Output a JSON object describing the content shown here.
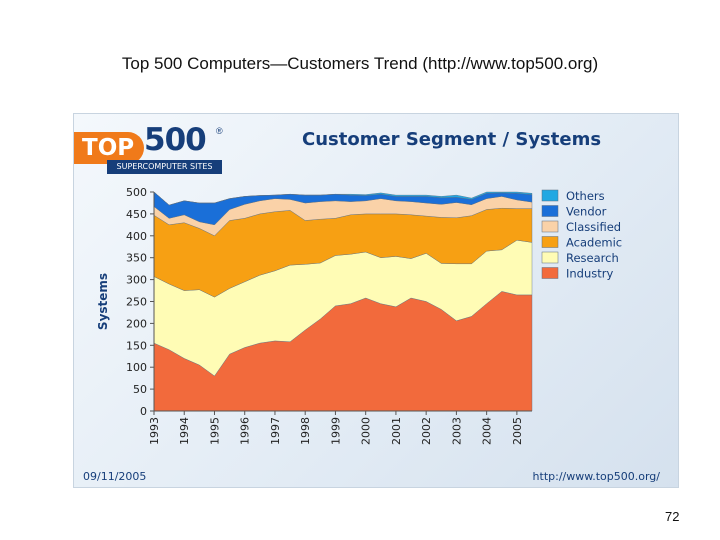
{
  "slide": {
    "title": "Top 500 Computers—Customers Trend (http://www.top500.org)",
    "page_number": "72"
  },
  "panel": {
    "logo_badge": "TOP",
    "logo_word": "500",
    "logo_reg": "®",
    "logo_tagline": "SUPERCOMPUTER SITES",
    "footer_date": "09/11/2005",
    "footer_url": "http://www.top500.org/"
  },
  "chart_data": {
    "type": "area",
    "stacked": true,
    "title": "Customer Segment / Systems",
    "xlabel": "",
    "ylabel": "Systems",
    "ylim": [
      0,
      500
    ],
    "yticks": [
      0,
      50,
      100,
      150,
      200,
      250,
      300,
      350,
      400,
      450,
      500
    ],
    "x_ticks": [
      "1993",
      "1994",
      "1995",
      "1996",
      "1997",
      "1998",
      "1999",
      "2000",
      "2001",
      "2002",
      "2003",
      "2004",
      "2005"
    ],
    "x": [
      1993.0,
      1993.5,
      1994.0,
      1994.5,
      1995.0,
      1995.5,
      1996.0,
      1996.5,
      1997.0,
      1997.5,
      1998.0,
      1998.5,
      1999.0,
      1999.5,
      2000.0,
      2000.5,
      2001.0,
      2001.5,
      2002.0,
      2002.5,
      2003.0,
      2003.5,
      2004.0,
      2004.5,
      2005.0,
      2005.5
    ],
    "grid": false,
    "legend_position": "right",
    "series": [
      {
        "name": "Industry",
        "color": "#f26a3c",
        "values": [
          155,
          140,
          120,
          105,
          80,
          130,
          145,
          155,
          160,
          158,
          185,
          210,
          240,
          245,
          258,
          245,
          238,
          258,
          250,
          232,
          206,
          216,
          245,
          273,
          265,
          265
        ]
      },
      {
        "name": "Research",
        "color": "#fffcb5",
        "values": [
          152,
          150,
          155,
          172,
          180,
          150,
          150,
          155,
          160,
          175,
          150,
          128,
          115,
          113,
          105,
          105,
          115,
          90,
          110,
          105,
          130,
          120,
          120,
          95,
          125,
          120
        ]
      },
      {
        "name": "Academic",
        "color": "#f7a013",
        "values": [
          140,
          135,
          155,
          140,
          140,
          155,
          145,
          140,
          135,
          125,
          100,
          100,
          85,
          90,
          87,
          100,
          97,
          100,
          85,
          105,
          105,
          110,
          95,
          95,
          72,
          77
        ]
      },
      {
        "name": "Classified",
        "color": "#fad2a8",
        "values": [
          20,
          15,
          18,
          15,
          25,
          25,
          32,
          30,
          30,
          25,
          40,
          40,
          40,
          30,
          30,
          35,
          30,
          30,
          30,
          30,
          35,
          25,
          25,
          27,
          20,
          15
        ]
      },
      {
        "name": "Vendor",
        "color": "#1a6fd8",
        "values": [
          33,
          30,
          32,
          43,
          50,
          25,
          18,
          12,
          8,
          12,
          18,
          15,
          15,
          15,
          12,
          10,
          10,
          12,
          15,
          15,
          12,
          12,
          12,
          8,
          15,
          17
        ]
      },
      {
        "name": "Others",
        "color": "#22a8e2",
        "values": [
          0,
          0,
          0,
          0,
          0,
          0,
          0,
          0,
          0,
          0,
          0,
          0,
          0,
          2,
          2,
          3,
          3,
          3,
          3,
          3,
          5,
          3,
          3,
          2,
          3,
          3
        ]
      }
    ]
  }
}
